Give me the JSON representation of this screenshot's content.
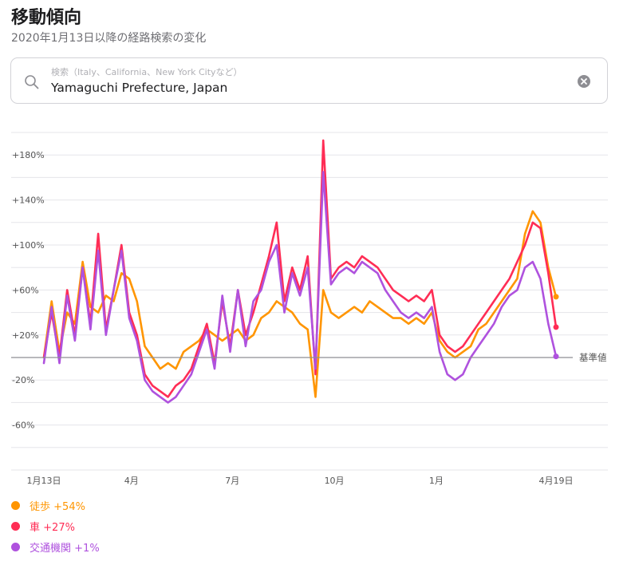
{
  "header": {
    "title": "移動傾向",
    "subtitle": "2020年1月13日以降の経路検索の変化"
  },
  "search": {
    "placeholder": "検索（Italy、California、New York Cityなど）",
    "value": "Yamaguchi Prefecture, Japan",
    "icon": "search-icon",
    "clear_icon": "clear-icon"
  },
  "colors": {
    "walking": "#ff9500",
    "driving": "#ff2d55",
    "transit": "#af52de",
    "grid": "#e5e5ea",
    "baseline": "#8e8e93",
    "tick_text": "#555555"
  },
  "chart_data": {
    "type": "line",
    "title": "",
    "xlabel": "",
    "ylabel": "",
    "ylim": [
      -100,
      200
    ],
    "y_ticks": [
      180,
      140,
      100,
      60,
      20,
      -20,
      -60
    ],
    "y_tick_labels": [
      "+180%",
      "+140%",
      "+100%",
      "+60%",
      "+20%",
      "-20%",
      "-60%"
    ],
    "x_tick_labels": [
      "1月13日",
      "4月",
      "7月",
      "10月",
      "1月",
      "4月19日"
    ],
    "x_tick_dates": [
      "2020-01-13",
      "2020-04-01",
      "2020-07-01",
      "2020-10-01",
      "2021-01-01",
      "2021-04-19"
    ],
    "x_range": [
      "2020-01-13",
      "2021-04-19"
    ],
    "baseline_value": 0,
    "baseline_label": "基準値",
    "grid": true,
    "legend_position": "bottom-left",
    "series": [
      {
        "name": "徒歩",
        "key": "walking",
        "end_label": "+54%",
        "points": [
          [
            "2020-01-13",
            0
          ],
          [
            "2020-01-20",
            50
          ],
          [
            "2020-01-27",
            5
          ],
          [
            "2020-02-03",
            40
          ],
          [
            "2020-02-10",
            30
          ],
          [
            "2020-02-17",
            85
          ],
          [
            "2020-02-24",
            45
          ],
          [
            "2020-03-02",
            40
          ],
          [
            "2020-03-09",
            55
          ],
          [
            "2020-03-16",
            50
          ],
          [
            "2020-03-23",
            75
          ],
          [
            "2020-03-30",
            70
          ],
          [
            "2020-04-06",
            50
          ],
          [
            "2020-04-13",
            10
          ],
          [
            "2020-04-20",
            0
          ],
          [
            "2020-04-27",
            -10
          ],
          [
            "2020-05-04",
            -5
          ],
          [
            "2020-05-11",
            -10
          ],
          [
            "2020-05-18",
            5
          ],
          [
            "2020-05-25",
            10
          ],
          [
            "2020-06-01",
            15
          ],
          [
            "2020-06-08",
            25
          ],
          [
            "2020-06-15",
            20
          ],
          [
            "2020-06-22",
            15
          ],
          [
            "2020-06-29",
            20
          ],
          [
            "2020-07-06",
            25
          ],
          [
            "2020-07-13",
            15
          ],
          [
            "2020-07-20",
            20
          ],
          [
            "2020-07-27",
            35
          ],
          [
            "2020-08-03",
            40
          ],
          [
            "2020-08-10",
            50
          ],
          [
            "2020-08-17",
            45
          ],
          [
            "2020-08-24",
            40
          ],
          [
            "2020-08-31",
            30
          ],
          [
            "2020-09-07",
            25
          ],
          [
            "2020-09-14",
            -35
          ],
          [
            "2020-09-21",
            60
          ],
          [
            "2020-09-28",
            40
          ],
          [
            "2020-10-05",
            35
          ],
          [
            "2020-10-12",
            40
          ],
          [
            "2020-10-19",
            45
          ],
          [
            "2020-10-26",
            40
          ],
          [
            "2020-11-02",
            50
          ],
          [
            "2020-11-09",
            45
          ],
          [
            "2020-11-16",
            40
          ],
          [
            "2020-11-23",
            35
          ],
          [
            "2020-11-30",
            35
          ],
          [
            "2020-12-07",
            30
          ],
          [
            "2020-12-14",
            35
          ],
          [
            "2020-12-21",
            30
          ],
          [
            "2020-12-28",
            40
          ],
          [
            "2021-01-04",
            15
          ],
          [
            "2021-01-11",
            5
          ],
          [
            "2021-01-18",
            0
          ],
          [
            "2021-01-25",
            5
          ],
          [
            "2021-02-01",
            10
          ],
          [
            "2021-02-08",
            25
          ],
          [
            "2021-02-15",
            30
          ],
          [
            "2021-02-22",
            40
          ],
          [
            "2021-03-01",
            50
          ],
          [
            "2021-03-08",
            60
          ],
          [
            "2021-03-15",
            70
          ],
          [
            "2021-03-22",
            110
          ],
          [
            "2021-03-29",
            130
          ],
          [
            "2021-04-05",
            120
          ],
          [
            "2021-04-12",
            80
          ],
          [
            "2021-04-19",
            54
          ]
        ]
      },
      {
        "name": "車",
        "key": "driving",
        "end_label": "+27%",
        "points": [
          [
            "2020-01-13",
            0
          ],
          [
            "2020-01-20",
            40
          ],
          [
            "2020-01-27",
            0
          ],
          [
            "2020-02-03",
            60
          ],
          [
            "2020-02-10",
            20
          ],
          [
            "2020-02-17",
            80
          ],
          [
            "2020-02-24",
            30
          ],
          [
            "2020-03-02",
            110
          ],
          [
            "2020-03-09",
            25
          ],
          [
            "2020-03-16",
            60
          ],
          [
            "2020-03-23",
            100
          ],
          [
            "2020-03-30",
            40
          ],
          [
            "2020-04-06",
            20
          ],
          [
            "2020-04-13",
            -15
          ],
          [
            "2020-04-20",
            -25
          ],
          [
            "2020-04-27",
            -30
          ],
          [
            "2020-05-04",
            -35
          ],
          [
            "2020-05-11",
            -25
          ],
          [
            "2020-05-18",
            -20
          ],
          [
            "2020-05-25",
            -10
          ],
          [
            "2020-06-01",
            10
          ],
          [
            "2020-06-08",
            30
          ],
          [
            "2020-06-15",
            -5
          ],
          [
            "2020-06-22",
            50
          ],
          [
            "2020-06-29",
            10
          ],
          [
            "2020-07-06",
            60
          ],
          [
            "2020-07-13",
            20
          ],
          [
            "2020-07-20",
            40
          ],
          [
            "2020-07-27",
            65
          ],
          [
            "2020-08-03",
            90
          ],
          [
            "2020-08-10",
            120
          ],
          [
            "2020-08-17",
            50
          ],
          [
            "2020-08-24",
            80
          ],
          [
            "2020-08-31",
            60
          ],
          [
            "2020-09-07",
            90
          ],
          [
            "2020-09-14",
            -15
          ],
          [
            "2020-09-21",
            193
          ],
          [
            "2020-09-28",
            70
          ],
          [
            "2020-10-05",
            80
          ],
          [
            "2020-10-12",
            85
          ],
          [
            "2020-10-19",
            80
          ],
          [
            "2020-10-26",
            90
          ],
          [
            "2020-11-02",
            85
          ],
          [
            "2020-11-09",
            80
          ],
          [
            "2020-11-16",
            70
          ],
          [
            "2020-11-23",
            60
          ],
          [
            "2020-11-30",
            55
          ],
          [
            "2020-12-07",
            50
          ],
          [
            "2020-12-14",
            55
          ],
          [
            "2020-12-21",
            50
          ],
          [
            "2020-12-28",
            60
          ],
          [
            "2021-01-04",
            20
          ],
          [
            "2021-01-11",
            10
          ],
          [
            "2021-01-18",
            5
          ],
          [
            "2021-01-25",
            10
          ],
          [
            "2021-02-01",
            20
          ],
          [
            "2021-02-08",
            30
          ],
          [
            "2021-02-15",
            40
          ],
          [
            "2021-02-22",
            50
          ],
          [
            "2021-03-01",
            60
          ],
          [
            "2021-03-08",
            70
          ],
          [
            "2021-03-15",
            85
          ],
          [
            "2021-03-22",
            100
          ],
          [
            "2021-03-29",
            120
          ],
          [
            "2021-04-05",
            115
          ],
          [
            "2021-04-12",
            75
          ],
          [
            "2021-04-19",
            27
          ]
        ]
      },
      {
        "name": "交通機関",
        "key": "transit",
        "end_label": "+1%",
        "points": [
          [
            "2020-01-13",
            -5
          ],
          [
            "2020-01-20",
            45
          ],
          [
            "2020-01-27",
            -5
          ],
          [
            "2020-02-03",
            55
          ],
          [
            "2020-02-10",
            15
          ],
          [
            "2020-02-17",
            80
          ],
          [
            "2020-02-24",
            25
          ],
          [
            "2020-03-02",
            95
          ],
          [
            "2020-03-09",
            20
          ],
          [
            "2020-03-16",
            60
          ],
          [
            "2020-03-23",
            95
          ],
          [
            "2020-03-30",
            35
          ],
          [
            "2020-04-06",
            15
          ],
          [
            "2020-04-13",
            -20
          ],
          [
            "2020-04-20",
            -30
          ],
          [
            "2020-04-27",
            -35
          ],
          [
            "2020-05-04",
            -40
          ],
          [
            "2020-05-11",
            -35
          ],
          [
            "2020-05-18",
            -25
          ],
          [
            "2020-05-25",
            -15
          ],
          [
            "2020-06-01",
            5
          ],
          [
            "2020-06-08",
            25
          ],
          [
            "2020-06-15",
            -10
          ],
          [
            "2020-06-22",
            55
          ],
          [
            "2020-06-29",
            5
          ],
          [
            "2020-07-06",
            60
          ],
          [
            "2020-07-13",
            10
          ],
          [
            "2020-07-20",
            50
          ],
          [
            "2020-07-27",
            60
          ],
          [
            "2020-08-03",
            85
          ],
          [
            "2020-08-10",
            100
          ],
          [
            "2020-08-17",
            40
          ],
          [
            "2020-08-24",
            75
          ],
          [
            "2020-08-31",
            55
          ],
          [
            "2020-09-07",
            80
          ],
          [
            "2020-09-14",
            -10
          ],
          [
            "2020-09-21",
            165
          ],
          [
            "2020-09-28",
            65
          ],
          [
            "2020-10-05",
            75
          ],
          [
            "2020-10-12",
            80
          ],
          [
            "2020-10-19",
            75
          ],
          [
            "2020-10-26",
            85
          ],
          [
            "2020-11-02",
            80
          ],
          [
            "2020-11-09",
            75
          ],
          [
            "2020-11-16",
            60
          ],
          [
            "2020-11-23",
            50
          ],
          [
            "2020-11-30",
            40
          ],
          [
            "2020-12-07",
            35
          ],
          [
            "2020-12-14",
            40
          ],
          [
            "2020-12-21",
            35
          ],
          [
            "2020-12-28",
            45
          ],
          [
            "2021-01-04",
            5
          ],
          [
            "2021-01-11",
            -15
          ],
          [
            "2021-01-18",
            -20
          ],
          [
            "2021-01-25",
            -15
          ],
          [
            "2021-02-01",
            0
          ],
          [
            "2021-02-08",
            10
          ],
          [
            "2021-02-15",
            20
          ],
          [
            "2021-02-22",
            30
          ],
          [
            "2021-03-01",
            45
          ],
          [
            "2021-03-08",
            55
          ],
          [
            "2021-03-15",
            60
          ],
          [
            "2021-03-22",
            80
          ],
          [
            "2021-03-29",
            85
          ],
          [
            "2021-04-05",
            70
          ],
          [
            "2021-04-12",
            30
          ],
          [
            "2021-04-19",
            1
          ]
        ]
      }
    ]
  }
}
